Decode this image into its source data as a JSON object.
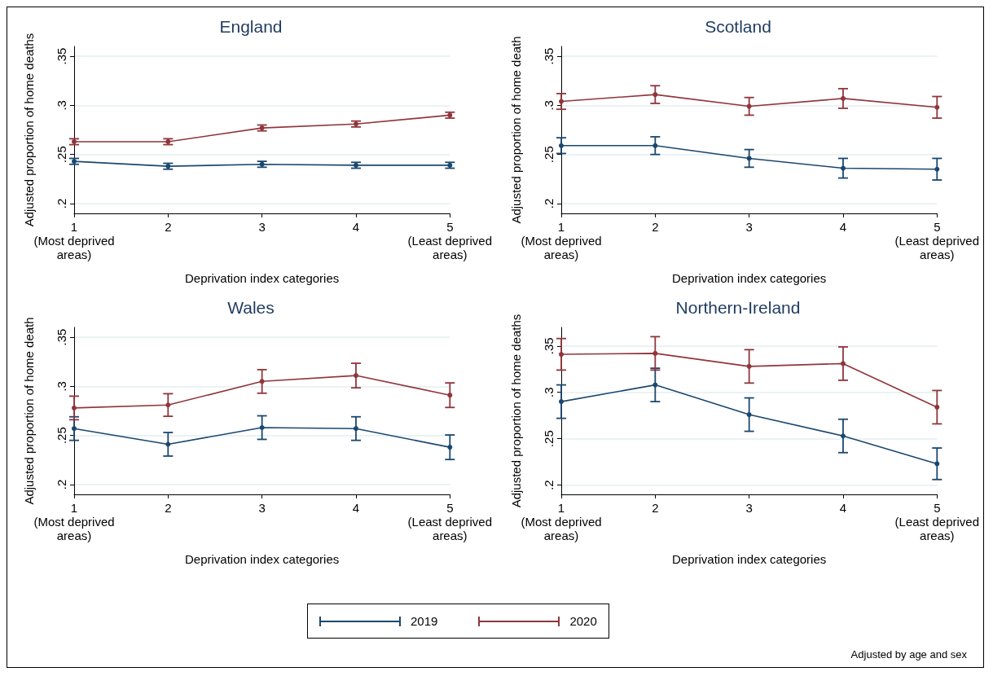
{
  "chart_data": [
    {
      "type": "line",
      "title": "England",
      "xlabel": "Deprivation index categories",
      "ylabel": "Adjusted proportion of home deaths",
      "categories": [
        "1\n(Most deprived\nareas)",
        "2",
        "3",
        "4",
        "5\n(Least deprived\nareas)"
      ],
      "ylim": [
        0.19,
        0.36
      ],
      "yticks": [
        {
          "value": 0.2,
          "label": ".2"
        },
        {
          "value": 0.25,
          "label": ".25"
        },
        {
          "value": 0.3,
          "label": ".3"
        },
        {
          "value": 0.35,
          "label": ".35"
        }
      ],
      "grid": "y",
      "marker": "circle",
      "legend": "bottom",
      "series": [
        {
          "name": "2019",
          "color": "#1a476f",
          "values": [
            0.243,
            0.238,
            0.24,
            0.239,
            0.239
          ],
          "errors": [
            0.003,
            0.003,
            0.003,
            0.003,
            0.003
          ]
        },
        {
          "name": "2020",
          "color": "#90353b",
          "values": [
            0.263,
            0.263,
            0.277,
            0.281,
            0.29
          ],
          "errors": [
            0.003,
            0.003,
            0.003,
            0.003,
            0.003
          ]
        }
      ]
    },
    {
      "type": "line",
      "title": "Scotland",
      "xlabel": "Deprivation index categories",
      "ylabel": "Adjusted proportion of home death",
      "categories": [
        "1\n(Most deprived\nareas)",
        "2",
        "3",
        "4",
        "5\n(Least deprived\nareas)"
      ],
      "ylim": [
        0.19,
        0.36
      ],
      "yticks": [
        {
          "value": 0.2,
          "label": ".2"
        },
        {
          "value": 0.25,
          "label": ".25"
        },
        {
          "value": 0.3,
          "label": ".3"
        },
        {
          "value": 0.35,
          "label": ".35"
        }
      ],
      "grid": "y",
      "marker": "circle",
      "series": [
        {
          "name": "2019",
          "color": "#1a476f",
          "values": [
            0.259,
            0.259,
            0.246,
            0.236,
            0.235
          ],
          "errors": [
            0.008,
            0.009,
            0.009,
            0.01,
            0.011
          ]
        },
        {
          "name": "2020",
          "color": "#90353b",
          "values": [
            0.304,
            0.311,
            0.299,
            0.307,
            0.298
          ],
          "errors": [
            0.008,
            0.009,
            0.009,
            0.01,
            0.011
          ]
        }
      ]
    },
    {
      "type": "line",
      "title": "Wales",
      "xlabel": "Deprivation index categories",
      "ylabel": "Adjusted proportion of home death",
      "categories": [
        "1\n(Most deprived\nareas)",
        "2",
        "3",
        "4",
        "5\n(Least deprived\nareas)"
      ],
      "ylim": [
        0.19,
        0.36
      ],
      "yticks": [
        {
          "value": 0.2,
          "label": ".2"
        },
        {
          "value": 0.25,
          "label": ".25"
        },
        {
          "value": 0.3,
          "label": ".3"
        },
        {
          "value": 0.35,
          "label": ".35"
        }
      ],
      "grid": "y",
      "marker": "circle",
      "series": [
        {
          "name": "2019",
          "color": "#1a476f",
          "values": [
            0.257,
            0.241,
            0.258,
            0.257,
            0.238
          ],
          "errors": [
            0.012,
            0.012,
            0.012,
            0.012,
            0.0125
          ]
        },
        {
          "name": "2020",
          "color": "#90353b",
          "values": [
            0.278,
            0.281,
            0.305,
            0.311,
            0.291
          ],
          "errors": [
            0.012,
            0.0115,
            0.012,
            0.0125,
            0.0125
          ]
        }
      ]
    },
    {
      "type": "line",
      "title": "Northern-Ireland",
      "xlabel": "Deprivation index categories",
      "ylabel": "Adjusted proportion of home deaths",
      "categories": [
        "1\n(Most deprived\nareas)",
        "2",
        "3",
        "4",
        "5\n(Least deprived\nareas)"
      ],
      "ylim": [
        0.19,
        0.37
      ],
      "yticks": [
        {
          "value": 0.2,
          "label": ".2"
        },
        {
          "value": 0.25,
          "label": ".25"
        },
        {
          "value": 0.3,
          "label": ".3"
        },
        {
          "value": 0.35,
          "label": ".35"
        }
      ],
      "grid": "y",
      "marker": "circle",
      "annotations": [
        "Adjusted by age and sex"
      ],
      "series": [
        {
          "name": "2019",
          "color": "#1a476f",
          "values": [
            0.29,
            0.308,
            0.276,
            0.253,
            0.223
          ],
          "errors": [
            0.018,
            0.018,
            0.018,
            0.018,
            0.017
          ]
        },
        {
          "name": "2020",
          "color": "#90353b",
          "values": [
            0.341,
            0.342,
            0.328,
            0.331,
            0.284
          ],
          "errors": [
            0.017,
            0.018,
            0.018,
            0.018,
            0.018
          ]
        }
      ]
    }
  ]
}
